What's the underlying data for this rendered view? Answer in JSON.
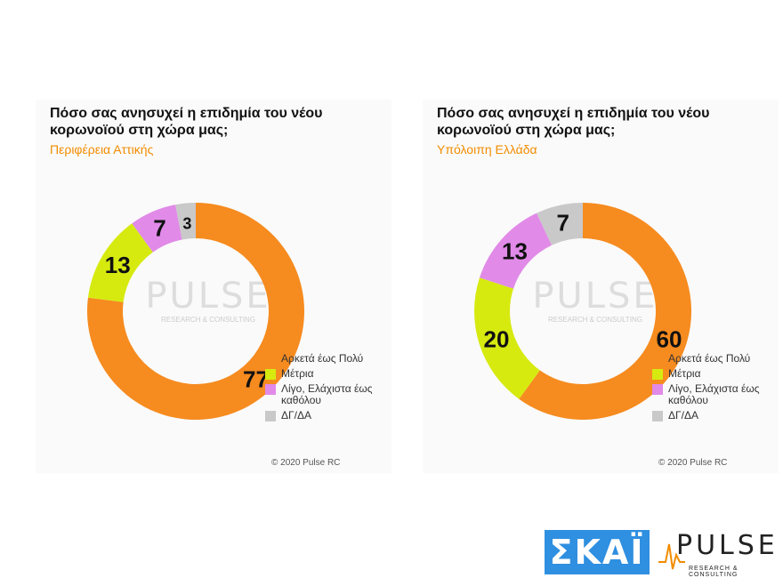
{
  "panels": [
    {
      "title": "Πόσο σας ανησυχεί η επιδημία του νέου κορωνοϊού στη χώρα μας;",
      "subtitle": "Περιφέρεια Αττικής",
      "copyright": "© 2020 Pulse RC"
    },
    {
      "title": "Πόσο σας ανησυχεί η επιδημία του νέου κορωνοϊού στη χώρα μας;",
      "subtitle": "Υπόλοιπη Ελλάδα",
      "copyright": "© 2020 Pulse RC"
    }
  ],
  "legend": [
    {
      "label": "Αρκετά έως Πολύ",
      "color": "#f68b1f"
    },
    {
      "label": "Μέτρια",
      "color": "#d6ea10"
    },
    {
      "label": "Λίγο, Ελάχιστα έως καθόλου",
      "color": "#e18ae8"
    },
    {
      "label": "ΔΓ/ΔΑ",
      "color": "#c9c9c9"
    }
  ],
  "watermark": {
    "word": "PULSE",
    "sub": "RESEARCH & CONSULTING"
  },
  "logos": {
    "skai": "ΣΚΑΪ",
    "pulse": "PULSE",
    "pulse_sub": "RESEARCH & CONSULTING"
  },
  "chart_data": [
    {
      "type": "pie",
      "title": "Πόσο σας ανησυχεί η επιδημία του νέου κορωνοϊού στη χώρα μας;",
      "subtitle": "Περιφέρεια Αττικής",
      "categories": [
        "Αρκετά έως Πολύ",
        "Μέτρια",
        "Λίγο, Ελάχιστα έως καθόλου",
        "ΔΓ/ΔΑ"
      ],
      "values": [
        77,
        13,
        7,
        3
      ],
      "colors": [
        "#f68b1f",
        "#d6ea10",
        "#e18ae8",
        "#c9c9c9"
      ],
      "donut": true
    },
    {
      "type": "pie",
      "title": "Πόσο σας ανησυχεί η επιδημία του νέου κορωνοϊού στη χώρα μας;",
      "subtitle": "Υπόλοιπη Ελλάδα",
      "categories": [
        "Αρκετά έως Πολύ",
        "Μέτρια",
        "Λίγο, Ελάχιστα έως καθόλου",
        "ΔΓ/ΔΑ"
      ],
      "values": [
        60,
        20,
        13,
        7
      ],
      "colors": [
        "#f68b1f",
        "#d6ea10",
        "#e18ae8",
        "#c9c9c9"
      ],
      "donut": true
    }
  ]
}
